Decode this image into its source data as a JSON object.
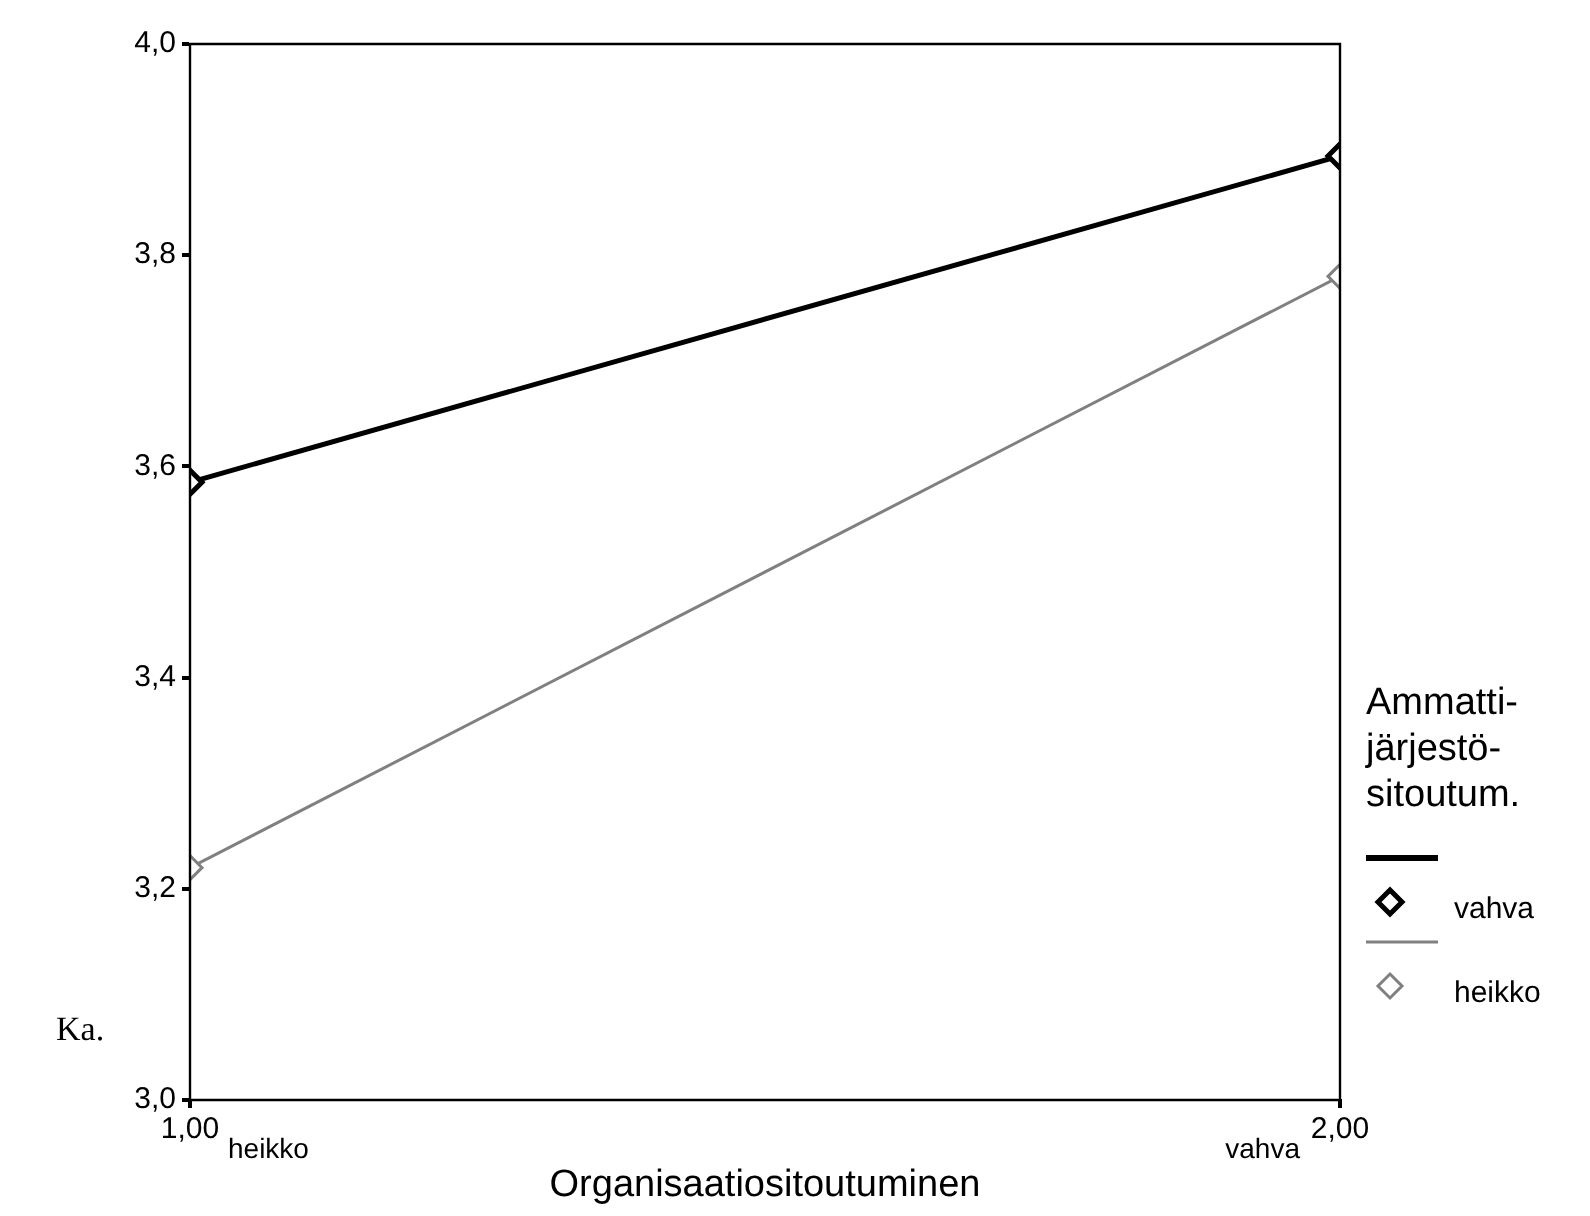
{
  "chart_data": {
    "type": "line",
    "xlabel": "Organisaatiositoutuminen",
    "ylabel": "Ka.",
    "legend_title": "Ammatti-järjestö-sitoutum.",
    "x": [
      1,
      2
    ],
    "series": [
      {
        "name": "vahva",
        "color": "#000000",
        "values": [
          3.585,
          3.894
        ]
      },
      {
        "name": "heikko",
        "color": "#808080",
        "values": [
          3.22,
          3.78
        ]
      }
    ],
    "xlim": [
      1,
      2
    ],
    "xticks": [
      {
        "value": 1,
        "label": "1,00"
      },
      {
        "value": 2,
        "label": "2,00"
      }
    ],
    "ylim": [
      3,
      4
    ],
    "yticks": [
      {
        "value": 3,
        "label": "3,0"
      },
      {
        "value": 3.2,
        "label": "3,2"
      },
      {
        "value": 3.4,
        "label": "3,4"
      },
      {
        "value": 3.6,
        "label": "3,6"
      },
      {
        "value": 3.8,
        "label": "3,8"
      },
      {
        "value": 4,
        "label": "4,0"
      }
    ],
    "annotations": [
      "heikko",
      "vahva"
    ],
    "grid": false,
    "legend": "right",
    "marker": "diamond",
    "line_style": "solid"
  }
}
